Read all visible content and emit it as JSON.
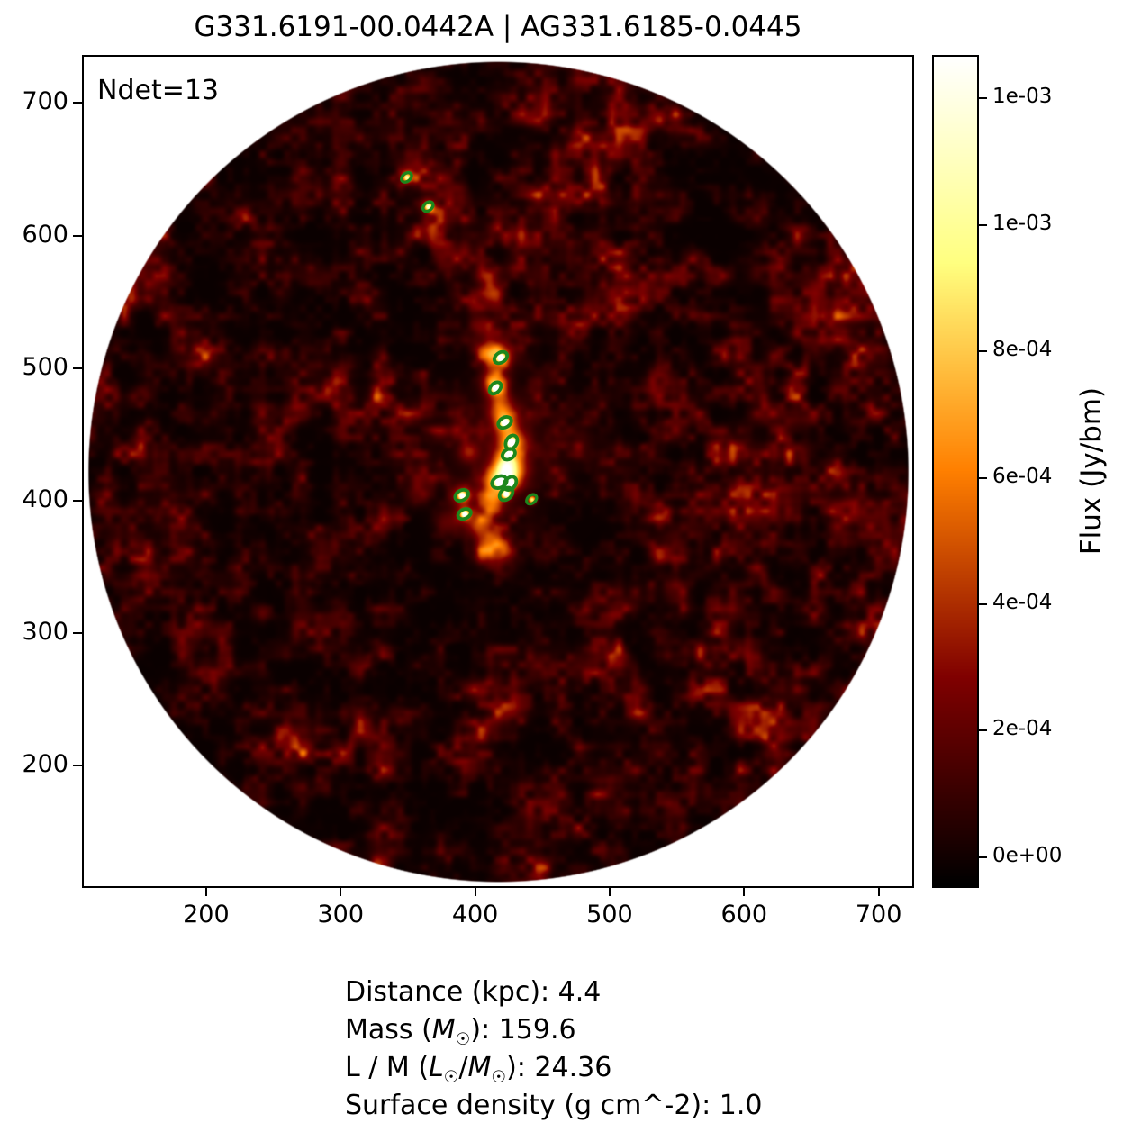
{
  "title": "G331.6191-00.0442A | AG331.6185-0.0445",
  "plot": {
    "ndet_label": "Ndet=13"
  },
  "info": {
    "lines": [
      {
        "segments": [
          {
            "t": "Distance (kpc): 4.4"
          }
        ]
      },
      {
        "segments": [
          {
            "t": "Mass ("
          },
          {
            "t": "M",
            "i": true
          },
          {
            "t": "☉",
            "sub": true
          },
          {
            "t": "): 159.6"
          }
        ]
      },
      {
        "segments": [
          {
            "t": "L / M ("
          },
          {
            "t": "L",
            "i": true
          },
          {
            "t": "☉",
            "sub": true
          },
          {
            "t": "/"
          },
          {
            "t": "M",
            "i": true
          },
          {
            "t": "☉",
            "sub": true
          },
          {
            "t": "): 24.36"
          }
        ]
      },
      {
        "segments": [
          {
            "t": "Surface density (g cm^-2): 1.0"
          }
        ]
      }
    ]
  },
  "chart_data": {
    "type": "heatmap",
    "title": "G331.6191-00.0442A | AG331.6185-0.0445",
    "colormap": "afmhot",
    "grid": false,
    "xlim": [
      109,
      725
    ],
    "ylim": [
      109,
      735
    ],
    "x_ticks": [
      200,
      300,
      400,
      500,
      600,
      700
    ],
    "y_ticks": [
      700,
      600,
      500,
      400,
      300,
      200
    ],
    "field_circle": {
      "cx": 417,
      "cy": 422,
      "radius": 307,
      "outside_color": "#ffffff"
    },
    "colorbar": {
      "label": "Flux (Jy/bm)",
      "vmin": -4.6e-05,
      "vmax": 0.001266,
      "ticks": [
        {
          "value": 0.0,
          "label": "0e+00"
        },
        {
          "value": 0.0002,
          "label": "2e-04"
        },
        {
          "value": 0.0004,
          "label": "4e-04"
        },
        {
          "value": 0.0006,
          "label": "6e-04"
        },
        {
          "value": 0.0008,
          "label": "8e-04"
        },
        {
          "value": 0.001,
          "label": "1e-03"
        },
        {
          "value": 0.0012,
          "label": "1e-03"
        }
      ]
    },
    "n_detections": 13,
    "detection_color": "#1c871c",
    "detections": [
      {
        "x": 349,
        "y": 644,
        "w": 8.5,
        "h": 6,
        "angle": 40,
        "core": 0.5,
        "sw": 3.4
      },
      {
        "x": 365,
        "y": 622,
        "w": 8.5,
        "h": 6,
        "angle": 40,
        "core": 0.55,
        "sw": 3.4
      },
      {
        "x": 419,
        "y": 508,
        "w": 10.5,
        "h": 7.5,
        "angle": 35,
        "core": 0.9,
        "sw": 3.8
      },
      {
        "x": 415,
        "y": 485,
        "w": 10,
        "h": 7,
        "angle": 45,
        "core": 0.85,
        "sw": 3.8
      },
      {
        "x": 422,
        "y": 459,
        "w": 10.5,
        "h": 7.5,
        "angle": 30,
        "core": 0.95,
        "sw": 3.8
      },
      {
        "x": 427,
        "y": 444,
        "w": 11,
        "h": 8,
        "angle": 60,
        "core": 1.0,
        "sw": 3.8
      },
      {
        "x": 425,
        "y": 435,
        "w": 10,
        "h": 7.5,
        "angle": 30,
        "core": 0.95,
        "sw": 3.8
      },
      {
        "x": 418,
        "y": 414,
        "w": 11.5,
        "h": 8.5,
        "angle": 25,
        "core": 1.0,
        "sw": 3.8
      },
      {
        "x": 426,
        "y": 413,
        "w": 11,
        "h": 8,
        "angle": 50,
        "core": 1.0,
        "sw": 3.8
      },
      {
        "x": 423,
        "y": 405,
        "w": 11,
        "h": 8,
        "angle": 40,
        "core": 0.9,
        "sw": 3.8
      },
      {
        "x": 390,
        "y": 404,
        "w": 10.5,
        "h": 7.5,
        "angle": 30,
        "core": 0.85,
        "sw": 3.8
      },
      {
        "x": 442,
        "y": 401,
        "w": 8.5,
        "h": 6,
        "angle": 40,
        "core": 0.5,
        "sw": 3.2
      },
      {
        "x": 392,
        "y": 390,
        "w": 10,
        "h": 7,
        "angle": 25,
        "core": 0.8,
        "sw": 3.8
      }
    ],
    "bright_regions": [
      [
        349,
        644,
        4,
        0.25
      ],
      [
        365,
        622,
        4,
        0.3
      ],
      [
        419,
        508,
        6,
        0.35
      ],
      [
        415,
        485,
        5.5,
        0.3
      ],
      [
        422,
        459,
        6,
        0.4
      ],
      [
        427,
        444,
        7,
        0.5
      ],
      [
        418,
        414,
        8,
        0.5
      ],
      [
        426,
        421,
        7,
        0.45
      ],
      [
        390,
        404,
        5.5,
        0.35
      ],
      [
        392,
        390,
        4.5,
        0.3
      ],
      [
        442,
        401,
        2.5,
        0.2
      ],
      [
        409,
        570,
        6,
        0.22
      ],
      [
        412,
        556,
        5.5,
        0.22
      ],
      [
        405,
        532,
        6,
        0.18
      ],
      [
        411,
        512,
        5.5,
        0.28
      ],
      [
        414,
        491,
        6,
        0.3
      ],
      [
        419,
        470,
        6.5,
        0.32
      ],
      [
        423,
        428,
        7,
        0.4
      ],
      [
        412,
        398,
        6,
        0.3
      ],
      [
        403,
        382,
        6,
        0.33
      ],
      [
        410,
        366,
        6.5,
        0.28
      ],
      [
        421,
        363,
        6,
        0.2
      ],
      [
        395,
        437,
        5,
        0.22
      ],
      [
        380,
        384,
        7,
        0.15
      ],
      [
        357,
        407,
        7,
        0.12
      ],
      [
        368,
        610,
        6,
        0.12
      ],
      [
        384,
        577,
        7,
        0.08
      ],
      [
        400,
        549,
        5,
        0.14
      ],
      [
        418,
        444,
        30,
        0.1
      ]
    ],
    "annotations": {
      "ndet": "Ndet=13",
      "distance_kpc": 4.4,
      "mass_msun": 159.6,
      "l_over_m_lsun_per_msun": 24.36,
      "surface_density_g_cm2": 1.0
    }
  }
}
